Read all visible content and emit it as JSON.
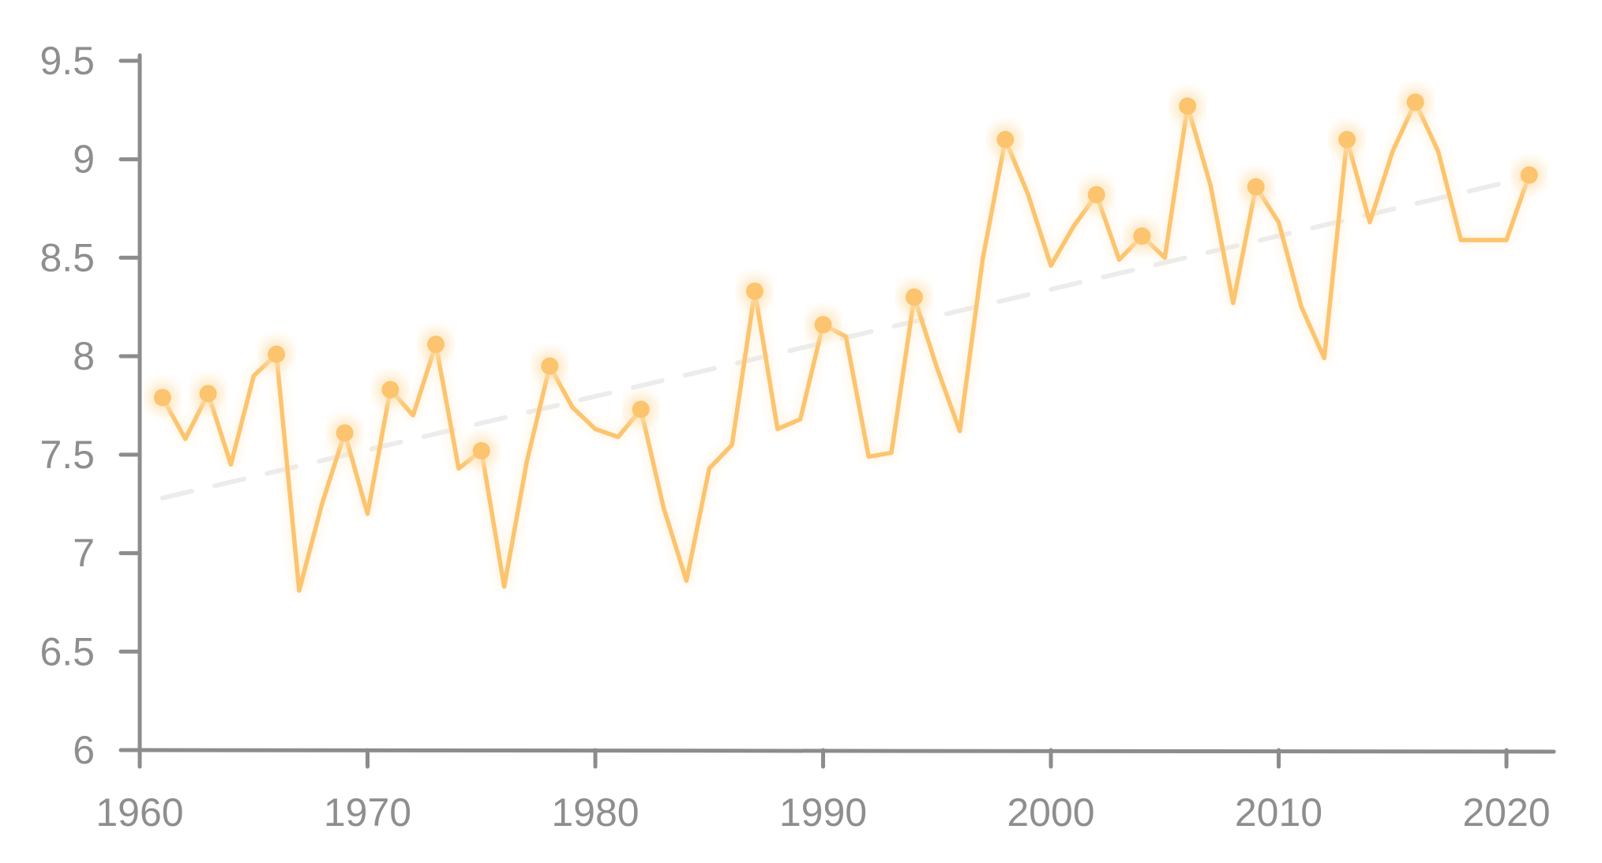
{
  "chart_data": {
    "type": "line",
    "title": "",
    "xlabel": "",
    "ylabel": "",
    "xlim": [
      1960,
      2021
    ],
    "ylim": [
      6,
      9.5
    ],
    "x_ticks": [
      1960,
      1970,
      1980,
      1990,
      2000,
      2010,
      2020
    ],
    "y_ticks": [
      6,
      6.5,
      7,
      7.5,
      8,
      8.5,
      9,
      9.5
    ],
    "y_tick_labels": [
      "6",
      "6.5",
      "7",
      "7.5",
      "8",
      "8.5",
      "9",
      "9.5"
    ],
    "x_tick_labels": [
      "1960",
      "1970",
      "1980",
      "1990",
      "2000",
      "2010",
      "2020"
    ],
    "grid": false,
    "colors": {
      "series": "#fcc46e",
      "glow": "#fde3b6",
      "trend": "#ececec",
      "axis": "#8c8c8c",
      "text": "#8e8e8e"
    },
    "series": [
      {
        "x": [
          1961,
          1962,
          1963,
          1964,
          1965,
          1966,
          1967,
          1968,
          1969,
          1970,
          1971,
          1972,
          1973,
          1974,
          1975,
          1976,
          1977,
          1978,
          1979,
          1980,
          1981,
          1982,
          1983,
          1984,
          1985,
          1986,
          1987,
          1988,
          1989,
          1990,
          1991,
          1992,
          1993,
          1994,
          1995,
          1996,
          1997,
          1998,
          1999,
          2000,
          2001,
          2002,
          2003,
          2004,
          2005,
          2006,
          2007,
          2008,
          2009,
          2010,
          2011,
          2012,
          2013,
          2014,
          2015,
          2016,
          2017,
          2018,
          2019,
          2020,
          2021
        ],
        "values": [
          7.79,
          7.58,
          7.81,
          7.45,
          7.9,
          8.01,
          6.81,
          7.25,
          7.61,
          7.2,
          7.83,
          7.7,
          8.06,
          7.43,
          7.52,
          6.83,
          7.47,
          7.95,
          7.74,
          7.63,
          7.59,
          7.73,
          7.23,
          6.86,
          7.43,
          7.55,
          8.33,
          7.63,
          7.68,
          8.16,
          8.1,
          7.49,
          7.51,
          8.3,
          7.94,
          7.62,
          8.49,
          9.1,
          8.82,
          8.46,
          8.66,
          8.82,
          8.49,
          8.61,
          8.5,
          9.27,
          8.87,
          8.27,
          8.86,
          8.68,
          8.25,
          7.99,
          9.1,
          8.68,
          9.04,
          9.29,
          9.04,
          8.59,
          8.59,
          8.59,
          8.92
        ]
      }
    ],
    "markers": [
      {
        "x": 1961,
        "y": 7.79
      },
      {
        "x": 1963,
        "y": 7.81
      },
      {
        "x": 1966,
        "y": 8.01
      },
      {
        "x": 1969,
        "y": 7.61
      },
      {
        "x": 1971,
        "y": 7.83
      },
      {
        "x": 1973,
        "y": 8.06
      },
      {
        "x": 1975,
        "y": 7.52
      },
      {
        "x": 1978,
        "y": 7.95
      },
      {
        "x": 1982,
        "y": 7.73
      },
      {
        "x": 1987,
        "y": 8.33
      },
      {
        "x": 1990,
        "y": 8.16
      },
      {
        "x": 1994,
        "y": 8.3
      },
      {
        "x": 1998,
        "y": 9.1
      },
      {
        "x": 2002,
        "y": 8.82
      },
      {
        "x": 2004,
        "y": 8.61
      },
      {
        "x": 2006,
        "y": 9.27
      },
      {
        "x": 2009,
        "y": 8.86
      },
      {
        "x": 2013,
        "y": 9.1
      },
      {
        "x": 2016,
        "y": 9.29
      },
      {
        "x": 2021,
        "y": 8.92
      }
    ],
    "trend": {
      "x": [
        1961,
        2021
      ],
      "y": [
        7.28,
        8.91
      ]
    }
  }
}
